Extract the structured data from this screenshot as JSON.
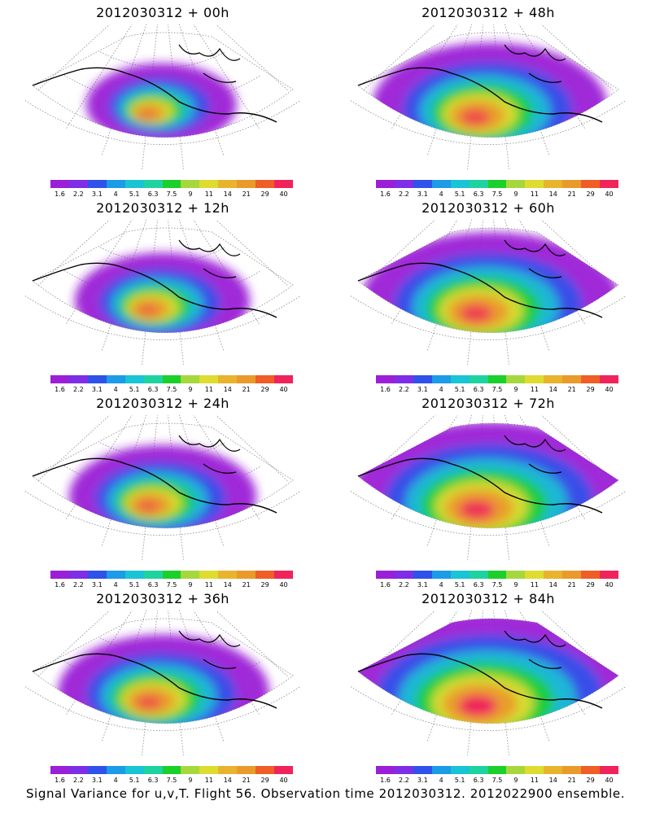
{
  "panels": [
    {
      "title": "2012030312 + 00h",
      "intensity": 0.35,
      "col": 0,
      "row": 0
    },
    {
      "title": "2012030312 + 12h",
      "intensity": 0.45,
      "col": 0,
      "row": 1
    },
    {
      "title": "2012030312 + 24h",
      "intensity": 0.5,
      "col": 0,
      "row": 2
    },
    {
      "title": "2012030312 + 36h",
      "intensity": 0.6,
      "col": 0,
      "row": 3
    },
    {
      "title": "2012030312 + 48h",
      "intensity": 0.7,
      "col": 1,
      "row": 0
    },
    {
      "title": "2012030312 + 60h",
      "intensity": 0.8,
      "col": 1,
      "row": 1
    },
    {
      "title": "2012030312 + 72h",
      "intensity": 0.9,
      "col": 1,
      "row": 2
    },
    {
      "title": "2012030312 + 84h",
      "intensity": 1.0,
      "col": 1,
      "row": 3
    }
  ],
  "colorbar": {
    "colors": [
      "#9b1fd6",
      "#7d2ee6",
      "#2f52ea",
      "#1c9be6",
      "#19c4d4",
      "#1fd3a0",
      "#1bd02a",
      "#a6d83d",
      "#dfdc31",
      "#e8b42d",
      "#ea9a2a",
      "#ee5e26",
      "#f0245b"
    ],
    "ticks": [
      "1.6",
      "2.2",
      "3.1",
      "4",
      "5.1",
      "6.3",
      "7.5",
      "9",
      "11",
      "14",
      "21",
      "29",
      "40"
    ]
  },
  "caption": "Signal Variance for u,v,T. Flight 56. Observation time 2012030312. 2012022900 ensemble."
}
